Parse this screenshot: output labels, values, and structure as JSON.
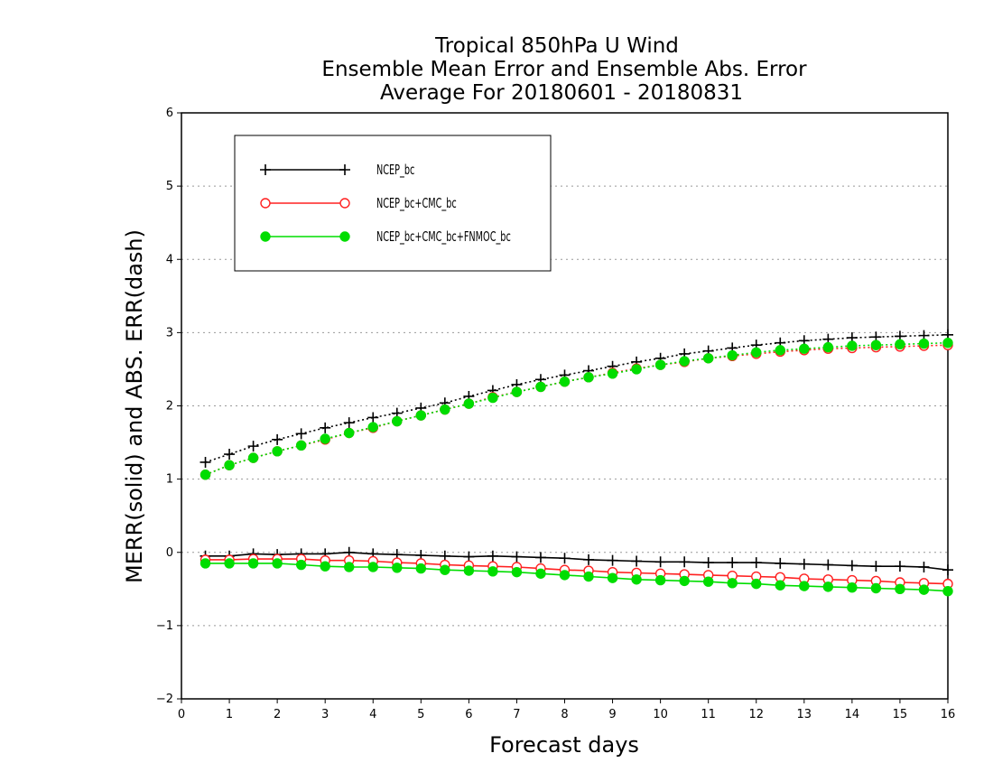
{
  "chart_data": {
    "type": "line",
    "title": [
      "Tropical 850hPa U Wind",
      "Ensemble Mean Error and Ensemble Abs. Error",
      "Average For 20180601 - 20180831"
    ],
    "xlabel": "Forecast days",
    "ylabel": "MERR(solid) and ABS. ERR(dash)",
    "xlim": [
      0,
      16
    ],
    "ylim": [
      -2,
      6
    ],
    "xticks": [
      "0",
      "1",
      "2",
      "3",
      "4",
      "5",
      "6",
      "7",
      "8",
      "9",
      "10",
      "11",
      "12",
      "13",
      "14",
      "15",
      "16"
    ],
    "yticks": [
      "-2",
      "-1",
      "0",
      "1",
      "2",
      "3",
      "4",
      "5",
      "6"
    ],
    "grid": "horizontal dotted",
    "legend_position": "top-left",
    "x": [
      0.5,
      1,
      1.5,
      2,
      2.5,
      3,
      3.5,
      4,
      4.5,
      5,
      5.5,
      6,
      6.5,
      7,
      7.5,
      8,
      8.5,
      9,
      9.5,
      10,
      10.5,
      11,
      11.5,
      12,
      12.5,
      13,
      13.5,
      14,
      14.5,
      15,
      15.5,
      16
    ],
    "series": [
      {
        "name": "NCEP_bc",
        "color": "#000000",
        "marker": "plus",
        "merr": [
          -0.05,
          -0.05,
          -0.02,
          -0.03,
          -0.02,
          -0.02,
          0.0,
          -0.02,
          -0.03,
          -0.04,
          -0.05,
          -0.06,
          -0.05,
          -0.06,
          -0.07,
          -0.08,
          -0.1,
          -0.11,
          -0.12,
          -0.13,
          -0.13,
          -0.14,
          -0.14,
          -0.14,
          -0.15,
          -0.16,
          -0.17,
          -0.18,
          -0.19,
          -0.19,
          -0.2,
          -0.24
        ],
        "abs_err": [
          1.23,
          1.34,
          1.45,
          1.54,
          1.62,
          1.7,
          1.77,
          1.84,
          1.9,
          1.97,
          2.04,
          2.13,
          2.21,
          2.29,
          2.36,
          2.42,
          2.48,
          2.54,
          2.6,
          2.65,
          2.71,
          2.75,
          2.79,
          2.83,
          2.86,
          2.89,
          2.91,
          2.93,
          2.94,
          2.95,
          2.96,
          2.97
        ]
      },
      {
        "name": "NCEP_bc+CMC_bc",
        "color": "#ff2020",
        "marker": "open-circle",
        "merr": [
          -0.1,
          -0.1,
          -0.09,
          -0.09,
          -0.09,
          -0.11,
          -0.11,
          -0.12,
          -0.14,
          -0.15,
          -0.17,
          -0.18,
          -0.19,
          -0.2,
          -0.22,
          -0.24,
          -0.25,
          -0.27,
          -0.28,
          -0.29,
          -0.3,
          -0.31,
          -0.32,
          -0.33,
          -0.34,
          -0.36,
          -0.37,
          -0.38,
          -0.39,
          -0.41,
          -0.42,
          -0.43
        ],
        "abs_err": [
          1.06,
          1.19,
          1.29,
          1.38,
          1.46,
          1.54,
          1.63,
          1.7,
          1.79,
          1.87,
          1.95,
          2.03,
          2.12,
          2.19,
          2.26,
          2.33,
          2.39,
          2.45,
          2.51,
          2.56,
          2.6,
          2.65,
          2.68,
          2.71,
          2.74,
          2.76,
          2.78,
          2.79,
          2.8,
          2.81,
          2.82,
          2.83
        ]
      },
      {
        "name": "NCEP_bc+CMC_bc+FNMOC_bc",
        "color": "#00dd00",
        "marker": "filled-circle",
        "merr": [
          -0.15,
          -0.15,
          -0.15,
          -0.15,
          -0.17,
          -0.19,
          -0.2,
          -0.2,
          -0.21,
          -0.22,
          -0.24,
          -0.25,
          -0.26,
          -0.27,
          -0.29,
          -0.31,
          -0.33,
          -0.35,
          -0.37,
          -0.38,
          -0.39,
          -0.4,
          -0.42,
          -0.43,
          -0.45,
          -0.46,
          -0.47,
          -0.48,
          -0.49,
          -0.5,
          -0.51,
          -0.53
        ],
        "abs_err": [
          1.06,
          1.19,
          1.29,
          1.38,
          1.46,
          1.55,
          1.63,
          1.71,
          1.79,
          1.87,
          1.95,
          2.03,
          2.11,
          2.19,
          2.26,
          2.33,
          2.39,
          2.44,
          2.5,
          2.56,
          2.61,
          2.65,
          2.69,
          2.73,
          2.76,
          2.78,
          2.8,
          2.82,
          2.83,
          2.84,
          2.85,
          2.86
        ]
      }
    ]
  }
}
